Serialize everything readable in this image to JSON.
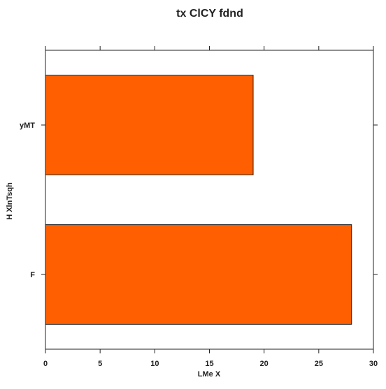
{
  "chart_data": {
    "type": "bar",
    "orientation": "horizontal",
    "title": "tx  ClCY fdnd",
    "xlabel": "LMe X",
    "ylabel": "H XlnTsqh",
    "categories": [
      "F",
      "yMT"
    ],
    "values": [
      28,
      19
    ],
    "xlim": [
      0,
      30
    ],
    "xticks": [
      0,
      5,
      10,
      15,
      20,
      25,
      30
    ],
    "grid": false,
    "legend": "none",
    "bar_color": "#ff5f00",
    "edge_color": "#222222"
  }
}
